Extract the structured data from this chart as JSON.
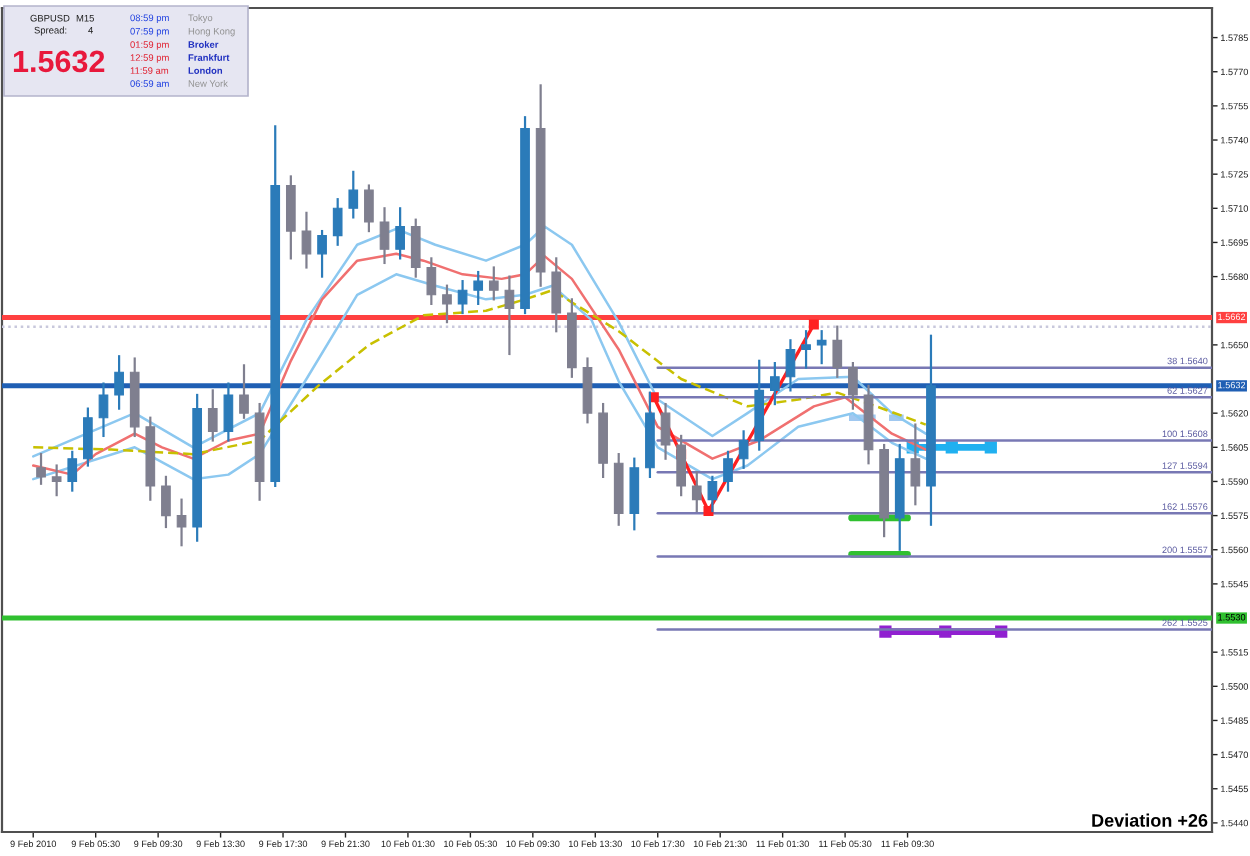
{
  "chart_data": {
    "type": "candlestick",
    "series": [
      {
        "type": "line",
        "color": "#8cc8f0",
        "x": [
          "2010-02-09T01:30",
          "2010-02-09T08:00",
          "2010-02-09T11:45",
          "2010-02-09T16:00",
          "2010-02-09T19:00",
          "2010-02-09T22:15",
          "2010-02-10T00:45",
          "2010-02-10T03:15",
          "2010-02-10T06:30",
          "2010-02-10T09:00",
          "2010-02-10T10:15",
          "2010-02-10T12:00",
          "2010-02-10T15:00",
          "2010-02-10T17:30",
          "2010-02-10T21:00",
          "2010-02-10T23:15",
          "2010-02-11T02:30",
          "2010-02-11T06:00",
          "2010-02-11T08:30",
          "2010-02-11T10:40"
        ],
        "values": [
          1.5601,
          1.562,
          1.5605,
          1.562,
          1.5661,
          1.5694,
          1.5701,
          1.5694,
          1.5687,
          1.5694,
          1.5702,
          1.5694,
          1.566,
          1.5626,
          1.561,
          1.562,
          1.5635,
          1.5636,
          1.562,
          1.5611
        ]
      },
      {
        "type": "line",
        "color": "#8cc8f0",
        "x": [
          "2010-02-09T01:30",
          "2010-02-09T08:00",
          "2010-02-09T11:45",
          "2010-02-09T14:00",
          "2010-02-09T16:00",
          "2010-02-09T19:00",
          "2010-02-09T22:15",
          "2010-02-10T00:45",
          "2010-02-10T03:15",
          "2010-02-10T06:30",
          "2010-02-10T09:00",
          "2010-02-10T10:45",
          "2010-02-10T13:15",
          "2010-02-10T15:00",
          "2010-02-10T17:30",
          "2010-02-10T21:00",
          "2010-02-10T23:15",
          "2010-02-11T02:30",
          "2010-02-11T06:00",
          "2010-02-11T08:30",
          "2010-02-11T10:40"
        ],
        "values": [
          1.5591,
          1.5605,
          1.5591,
          1.5593,
          1.5602,
          1.5635,
          1.5672,
          1.5681,
          1.5676,
          1.567,
          1.5672,
          1.5676,
          1.5661,
          1.5634,
          1.5605,
          1.5591,
          1.5597,
          1.5614,
          1.562,
          1.5607,
          1.56
        ]
      },
      {
        "type": "line",
        "color": "#f07070",
        "x": [
          "2010-02-09T01:30",
          "2010-02-09T04:00",
          "2010-02-09T05:30",
          "2010-02-09T08:00",
          "2010-02-09T09:45",
          "2010-02-09T11:45",
          "2010-02-09T14:00",
          "2010-02-09T16:00",
          "2010-02-09T18:00",
          "2010-02-09T20:00",
          "2010-02-09T22:15",
          "2010-02-10T00:45",
          "2010-02-10T02:30",
          "2010-02-10T05:00",
          "2010-02-10T07:30",
          "2010-02-10T09:00",
          "2010-02-10T10:15",
          "2010-02-10T12:00",
          "2010-02-10T15:00",
          "2010-02-10T17:30",
          "2010-02-10T21:00",
          "2010-02-11T00:00",
          "2010-02-11T03:30",
          "2010-02-11T05:30",
          "2010-02-11T08:30",
          "2010-02-11T10:40"
        ],
        "values": [
          1.5597,
          1.5593,
          1.5602,
          1.5611,
          1.5605,
          1.56,
          1.5608,
          1.5611,
          1.5643,
          1.567,
          1.5687,
          1.569,
          1.5687,
          1.5681,
          1.5679,
          1.5681,
          1.5689,
          1.5679,
          1.5648,
          1.5614,
          1.56,
          1.5608,
          1.5623,
          1.5627,
          1.5611,
          1.5604
        ]
      },
      {
        "type": "line",
        "color": "#c8c000",
        "line_style": "dashed",
        "x": [
          "2010-02-09T01:30",
          "2010-02-09T06:30",
          "2010-02-09T11:45",
          "2010-02-09T16:00",
          "2010-02-09T19:45",
          "2010-02-09T23:00",
          "2010-02-10T02:30",
          "2010-02-10T06:30",
          "2010-02-10T09:00",
          "2010-02-10T10:45",
          "2010-02-10T15:00",
          "2010-02-10T19:00",
          "2010-02-10T23:15",
          "2010-02-11T02:30",
          "2010-02-11T05:00",
          "2010-02-11T07:30",
          "2010-02-11T10:40"
        ],
        "values": [
          1.5605,
          1.5604,
          1.5602,
          1.5608,
          1.5632,
          1.565,
          1.5663,
          1.5665,
          1.567,
          1.5674,
          1.5656,
          1.5635,
          1.5623,
          1.5626,
          1.5629,
          1.5623,
          1.5615
        ]
      },
      {
        "type": "line",
        "color": "#7878b4",
        "x": [
          "2010-02-10T17:30",
          "2010-02-12T05:00"
        ],
        "values": [
          1.564,
          1.564
        ]
      },
      {
        "type": "line",
        "color": "#7878b4",
        "x": [
          "2010-02-10T17:30",
          "2010-02-12T05:00"
        ],
        "values": [
          1.5627,
          1.5627
        ]
      },
      {
        "type": "line",
        "color": "#7878b4",
        "x": [
          "2010-02-10T17:30",
          "2010-02-12T05:00"
        ],
        "values": [
          1.5608,
          1.5608
        ]
      },
      {
        "type": "line",
        "color": "#7878b4",
        "x": [
          "2010-02-10T17:30",
          "2010-02-12T05:00"
        ],
        "values": [
          1.5594,
          1.5594
        ]
      },
      {
        "type": "line",
        "color": "#7878b4",
        "x": [
          "2010-02-10T17:30",
          "2010-02-12T05:00"
        ],
        "values": [
          1.5576,
          1.5576
        ]
      },
      {
        "type": "line",
        "color": "#7878b4",
        "x": [
          "2010-02-10T17:30",
          "2010-02-12T05:00"
        ],
        "values": [
          1.5557,
          1.5557
        ]
      },
      {
        "type": "line",
        "color": "#7878b4",
        "x": [
          "2010-02-10T17:30",
          "2010-02-12T05:00"
        ],
        "values": [
          1.5525,
          1.5525
        ]
      },
      {
        "type": "line",
        "color": "#ff2020",
        "marker": "square",
        "x": [
          "2010-02-10T17:15",
          "2010-02-10T19:00",
          "2010-02-10T20:45",
          "2010-02-11T03:30"
        ],
        "values": [
          1.5627,
          1.5602,
          1.5577,
          1.5659
        ]
      },
      {
        "type": "line",
        "color": "#a0c8f0",
        "line_style": "dashed",
        "x": [
          "2010-02-11T05:45",
          "2010-02-11T09:15"
        ],
        "values": [
          1.5618,
          1.5618
        ]
      },
      {
        "type": "line",
        "color": "#20b0f0",
        "marker": "square",
        "x": [
          "2010-02-11T09:50",
          "2010-02-11T12:20",
          "2010-02-11T14:50"
        ],
        "values": [
          1.5605,
          1.5605,
          1.5605
        ]
      },
      {
        "type": "line",
        "color": "#30c030",
        "x": [
          "2010-02-11T05:55",
          "2010-02-11T09:30"
        ],
        "values": [
          1.5574,
          1.5574
        ]
      },
      {
        "type": "line",
        "color": "#30c030",
        "x": [
          "2010-02-11T05:55",
          "2010-02-11T09:30"
        ],
        "values": [
          1.5558,
          1.5558
        ]
      },
      {
        "type": "line",
        "color": "#9020d0",
        "marker": "square",
        "x": [
          "2010-02-11T08:05",
          "2010-02-11T11:55",
          "2010-02-11T15:30"
        ],
        "values": [
          1.5524,
          1.5524,
          1.5524
        ]
      },
      {
        "x": [
          "2010-02-09T02:00",
          "2010-02-09T03:00",
          "2010-02-09T04:00",
          "2010-02-09T05:00",
          "2010-02-09T06:00",
          "2010-02-09T07:00",
          "2010-02-09T08:00",
          "2010-02-09T09:00",
          "2010-02-09T10:00",
          "2010-02-09T11:00",
          "2010-02-09T12:00",
          "2010-02-09T13:00",
          "2010-02-09T14:00",
          "2010-02-09T15:00",
          "2010-02-09T16:00",
          "2010-02-09T17:00",
          "2010-02-09T18:00",
          "2010-02-09T19:00",
          "2010-02-09T20:00",
          "2010-02-09T21:00",
          "2010-02-09T22:00",
          "2010-02-09T23:00",
          "2010-02-10T00:00",
          "2010-02-10T01:00",
          "2010-02-10T02:00",
          "2010-02-10T03:00",
          "2010-02-10T04:00",
          "2010-02-10T05:00",
          "2010-02-10T06:00",
          "2010-02-10T07:00",
          "2010-02-10T08:00",
          "2010-02-10T09:00",
          "2010-02-10T10:00",
          "2010-02-10T11:00",
          "2010-02-10T12:00",
          "2010-02-10T13:00",
          "2010-02-10T14:00",
          "2010-02-10T15:00",
          "2010-02-10T16:00",
          "2010-02-10T17:00",
          "2010-02-10T18:00",
          "2010-02-10T19:00",
          "2010-02-10T20:00",
          "2010-02-10T21:00",
          "2010-02-10T22:00",
          "2010-02-10T23:00",
          "2010-02-11T00:00",
          "2010-02-11T01:00",
          "2010-02-11T02:00",
          "2010-02-11T03:00",
          "2010-02-11T04:00",
          "2010-02-11T05:00",
          "2010-02-11T06:00",
          "2010-02-11T07:00",
          "2010-02-11T08:00",
          "2010-02-11T09:00",
          "2010-02-11T10:00",
          "2010-02-11T11:00"
        ],
        "ohlc": [
          [
            1.5596,
            1.5602,
            1.5589,
            1.5592
          ],
          [
            1.5592,
            1.5597,
            1.5584,
            1.559
          ],
          [
            1.559,
            1.5603,
            1.5586,
            1.56
          ],
          [
            1.56,
            1.5622,
            1.5597,
            1.5618
          ],
          [
            1.5618,
            1.5633,
            1.561,
            1.5628
          ],
          [
            1.5628,
            1.5645,
            1.5622,
            1.5638
          ],
          [
            1.5638,
            1.5644,
            1.561,
            1.5614
          ],
          [
            1.5614,
            1.5618,
            1.5582,
            1.5588
          ],
          [
            1.5588,
            1.5592,
            1.557,
            1.5575
          ],
          [
            1.5575,
            1.5582,
            1.5562,
            1.557
          ],
          [
            1.557,
            1.5628,
            1.5564,
            1.5622
          ],
          [
            1.5622,
            1.563,
            1.5608,
            1.5612
          ],
          [
            1.5612,
            1.5633,
            1.5608,
            1.5628
          ],
          [
            1.5628,
            1.5641,
            1.5618,
            1.562
          ],
          [
            1.562,
            1.5624,
            1.5582,
            1.559
          ],
          [
            1.559,
            1.5746,
            1.5588,
            1.572
          ],
          [
            1.572,
            1.5724,
            1.5688,
            1.57
          ],
          [
            1.57,
            1.5708,
            1.5684,
            1.569
          ],
          [
            1.569,
            1.57,
            1.568,
            1.5698
          ],
          [
            1.5698,
            1.5714,
            1.5694,
            1.571
          ],
          [
            1.571,
            1.5726,
            1.5706,
            1.5718
          ],
          [
            1.5718,
            1.572,
            1.57,
            1.5704
          ],
          [
            1.5704,
            1.571,
            1.5686,
            1.5692
          ],
          [
            1.5692,
            1.571,
            1.5688,
            1.5702
          ],
          [
            1.5702,
            1.5705,
            1.568,
            1.5684
          ],
          [
            1.5684,
            1.5688,
            1.5668,
            1.5672
          ],
          [
            1.5672,
            1.5676,
            1.566,
            1.5668
          ],
          [
            1.5668,
            1.5678,
            1.5664,
            1.5674
          ],
          [
            1.5674,
            1.5682,
            1.5668,
            1.5678
          ],
          [
            1.5678,
            1.5684,
            1.567,
            1.5674
          ],
          [
            1.5674,
            1.568,
            1.5646,
            1.5666
          ],
          [
            1.5666,
            1.575,
            1.5664,
            1.5745
          ],
          [
            1.5745,
            1.5764,
            1.5676,
            1.5682
          ],
          [
            1.5682,
            1.5688,
            1.5656,
            1.5664
          ],
          [
            1.5664,
            1.567,
            1.5636,
            1.564
          ],
          [
            1.564,
            1.5644,
            1.5616,
            1.562
          ],
          [
            1.562,
            1.5624,
            1.5592,
            1.5598
          ],
          [
            1.5598,
            1.5602,
            1.5571,
            1.5576
          ],
          [
            1.5576,
            1.56,
            1.5569,
            1.5596
          ],
          [
            1.5596,
            1.5629,
            1.5592,
            1.562
          ],
          [
            1.562,
            1.5624,
            1.56,
            1.5606
          ],
          [
            1.5606,
            1.561,
            1.5584,
            1.5588
          ],
          [
            1.5588,
            1.5594,
            1.5577,
            1.5582
          ],
          [
            1.5582,
            1.5592,
            1.5577,
            1.559
          ],
          [
            1.559,
            1.5603,
            1.5586,
            1.56
          ],
          [
            1.56,
            1.5612,
            1.5596,
            1.5608
          ],
          [
            1.5608,
            1.5643,
            1.5604,
            1.563
          ],
          [
            1.563,
            1.5642,
            1.5624,
            1.5636
          ],
          [
            1.5636,
            1.5652,
            1.563,
            1.5648
          ],
          [
            1.5648,
            1.5656,
            1.564,
            1.565
          ],
          [
            1.565,
            1.5656,
            1.5642,
            1.5652
          ],
          [
            1.5652,
            1.5658,
            1.5636,
            1.564
          ],
          [
            1.564,
            1.5642,
            1.5622,
            1.5628
          ],
          [
            1.5628,
            1.5632,
            1.5598,
            1.5604
          ],
          [
            1.5604,
            1.5606,
            1.5566,
            1.5574
          ],
          [
            1.5574,
            1.5606,
            1.556,
            1.56
          ],
          [
            1.56,
            1.5615,
            1.558,
            1.5588
          ],
          [
            1.5588,
            1.5654,
            1.5571,
            1.5632
          ]
        ],
        "colors": [
          "#7f7f8f",
          "#7f7f8f",
          "#2b7bb9",
          "#2b7bb9",
          "#2b7bb9",
          "#2b7bb9",
          "#7f7f8f",
          "#7f7f8f",
          "#7f7f8f",
          "#7f7f8f",
          "#2b7bb9",
          "#7f7f8f",
          "#2b7bb9",
          "#7f7f8f",
          "#7f7f8f",
          "#2b7bb9",
          "#7f7f8f",
          "#7f7f8f",
          "#2b7bb9",
          "#2b7bb9",
          "#2b7bb9",
          "#7f7f8f",
          "#7f7f8f",
          "#2b7bb9",
          "#7f7f8f",
          "#7f7f8f",
          "#7f7f8f",
          "#2b7bb9",
          "#2b7bb9",
          "#7f7f8f",
          "#7f7f8f",
          "#2b7bb9",
          "#7f7f8f",
          "#7f7f8f",
          "#7f7f8f",
          "#7f7f8f",
          "#7f7f8f",
          "#7f7f8f",
          "#2b7bb9",
          "#2b7bb9",
          "#7f7f8f",
          "#7f7f8f",
          "#7f7f8f",
          "#2b7bb9",
          "#2b7bb9",
          "#2b7bb9",
          "#2b7bb9",
          "#2b7bb9",
          "#2b7bb9",
          "#2b7bb9",
          "#2b7bb9",
          "#7f7f8f",
          "#7f7f8f",
          "#7f7f8f",
          "#7f7f8f",
          "#2b7bb9",
          "#7f7f8f",
          "#2b7bb9"
        ]
      }
    ],
    "xlim": [
      "2010-02-08T23:30",
      "2010-02-12T05:00"
    ],
    "xticks": [
      {
        "value": "2010-02-09T01:30",
        "label": "9 Feb 2010"
      },
      {
        "value": "2010-02-09T05:30",
        "label": "9 Feb 05:30"
      },
      {
        "value": "2010-02-09T09:30",
        "label": "9 Feb 09:30"
      },
      {
        "value": "2010-02-09T13:30",
        "label": "9 Feb 13:30"
      },
      {
        "value": "2010-02-09T17:30",
        "label": "9 Feb 17:30"
      },
      {
        "value": "2010-02-09T21:30",
        "label": "9 Feb 21:30"
      },
      {
        "value": "2010-02-10T01:30",
        "label": "10 Feb 01:30"
      },
      {
        "value": "2010-02-10T05:30",
        "label": "10 Feb 05:30"
      },
      {
        "value": "2010-02-10T09:30",
        "label": "10 Feb 09:30"
      },
      {
        "value": "2010-02-10T13:30",
        "label": "10 Feb 13:30"
      },
      {
        "value": "2010-02-10T17:30",
        "label": "10 Feb 17:30"
      },
      {
        "value": "2010-02-10T21:30",
        "label": "10 Feb 21:30"
      },
      {
        "value": "2010-02-11T01:30",
        "label": "11 Feb 01:30"
      },
      {
        "value": "2010-02-11T05:30",
        "label": "11 Feb 05:30"
      },
      {
        "value": "2010-02-11T09:30",
        "label": "11 Feb 09:30"
      }
    ],
    "ylim": [
      1.5436,
      1.5798
    ],
    "yticks": [
      {
        "value": 1.544,
        "label": "1.5440"
      },
      1.5455,
      {
        "value": 1.547,
        "label": "1.5470"
      },
      1.5485,
      {
        "value": 1.55,
        "label": "1.5500"
      },
      1.5515,
      1.5545,
      {
        "value": 1.556,
        "label": "1.5560"
      },
      1.5575,
      {
        "value": 1.559,
        "label": "1.5590"
      },
      1.5605,
      {
        "value": 1.562,
        "label": "1.5620"
      },
      {
        "value": 1.565,
        "label": "1.5650"
      },
      {
        "value": 1.568,
        "label": "1.5680"
      },
      1.5695,
      {
        "value": 1.571,
        "label": "1.5710"
      },
      1.5725,
      {
        "value": 1.574,
        "label": "1.5740"
      },
      1.5755,
      {
        "value": 1.577,
        "label": "1.5770"
      },
      1.5785
    ],
    "ref_lines": [
      {
        "axis": "y",
        "value": 1.5658,
        "color": "#c8c8dc",
        "line_style": "dotted"
      },
      {
        "axis": "y",
        "value": 1.5662,
        "label": "1.5662",
        "color": "#ff4040"
      },
      {
        "axis": "y",
        "value": 1.5632,
        "label": "1.5632",
        "color": "#1f5fb4"
      },
      {
        "axis": "y",
        "value": 1.553,
        "label": "1.5530",
        "color": "#30c030"
      }
    ],
    "annotations": [
      "GBPUSD",
      "M15",
      "Spread:",
      "4",
      "1.5632",
      "08:59 pm",
      "Tokyo",
      "07:59 pm",
      "Hong Kong",
      "01:59 pm",
      "Broker",
      "12:59 pm",
      "Frankfurt",
      "11:59 am",
      "London",
      "06:59 am",
      "New York",
      "Deviation +26",
      {
        "text": "38 1.5640",
        "x": "2010-02-12T05:00",
        "y": 1.564
      },
      {
        "text": "62 1.5627",
        "x": "2010-02-12T05:00",
        "y": 1.5627
      },
      {
        "text": "100 1.5608",
        "x": "2010-02-12T05:00",
        "y": 1.5608
      },
      {
        "text": "127 1.5594",
        "x": "2010-02-12T05:00",
        "y": 1.5594
      },
      {
        "text": "162 1.5576",
        "x": "2010-02-12T05:00",
        "y": 1.5576
      },
      {
        "text": "200 1.5557",
        "x": "2010-02-12T05:00",
        "y": 1.5557
      },
      {
        "text": "262 1.5525",
        "x": "2010-02-12T05:00",
        "y": 1.5525
      }
    ]
  }
}
